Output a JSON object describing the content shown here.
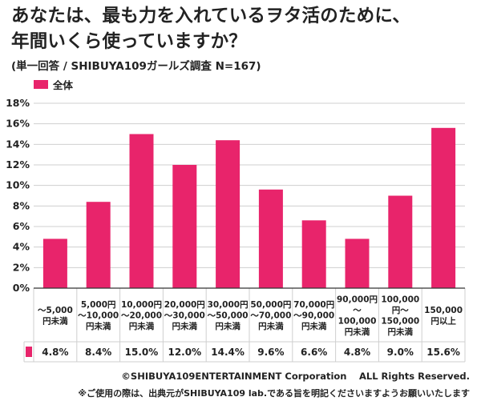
{
  "title_line1": "あなたは、最も力を入れているヲタ活のために、",
  "title_line2": "年間いくら使っていますか？",
  "subtitle": "(単一回答 / SHIBUYA109ガールズ調査 N=167)",
  "legend_label": "全体",
  "footer_copyright": "©SHIBUYA109ENTERTAINMENT Corporation　 ALL Rights Reserved.",
  "footer_note": "※ご使用の際は、出典元がSHIBUYA109 lab.である旨を明記くださいますようお願いいたします",
  "colors": {
    "bar": "#e8246b",
    "grid": "#cfcfcf",
    "axis": "#333333"
  },
  "chart_data": {
    "type": "bar",
    "categories": [
      [
        "〜5,000",
        "円未満"
      ],
      [
        "5,000円",
        "〜10,000",
        "円未満"
      ],
      [
        "10,000円",
        "〜20,000",
        "円未満"
      ],
      [
        "20,000円",
        "〜30,000",
        "円未満"
      ],
      [
        "30,000円",
        "〜50,000",
        "円未満"
      ],
      [
        "50,000円",
        "〜70,000",
        "円未満"
      ],
      [
        "70,000円",
        "〜90,000",
        "円未満"
      ],
      [
        "90,000円",
        "〜",
        "100,000",
        "円未満"
      ],
      [
        "100,000",
        "円〜",
        "150,000",
        "円未満"
      ],
      [
        "150,000",
        "円以上"
      ]
    ],
    "series": [
      {
        "name": "全体",
        "values": [
          4.8,
          8.4,
          15.0,
          12.0,
          14.4,
          9.6,
          6.6,
          4.8,
          9.0,
          15.6
        ]
      }
    ],
    "value_labels": [
      "4.8%",
      "8.4%",
      "15.0%",
      "12.0%",
      "14.4%",
      "9.6%",
      "6.6%",
      "4.8%",
      "9.0%",
      "15.6%"
    ],
    "yticks": [
      "0%",
      "2%",
      "4%",
      "6%",
      "8%",
      "10%",
      "12%",
      "14%",
      "16%",
      "18%"
    ],
    "ylim": [
      0,
      18
    ],
    "grid": true,
    "data_table": true
  }
}
